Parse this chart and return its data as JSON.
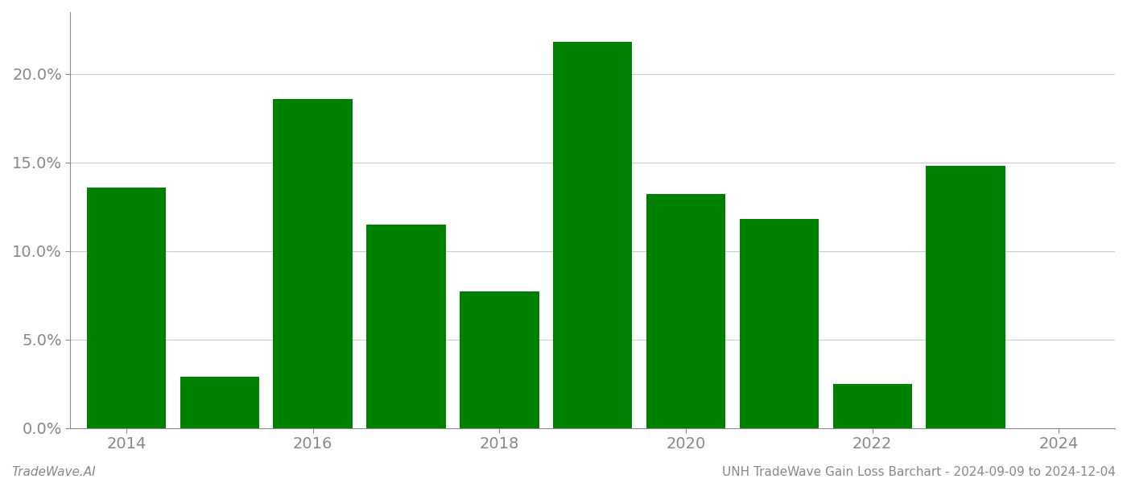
{
  "years": [
    2014,
    2015,
    2016,
    2017,
    2018,
    2019,
    2020,
    2021,
    2022,
    2023,
    2024
  ],
  "values": [
    0.136,
    0.029,
    0.186,
    0.115,
    0.077,
    0.218,
    0.132,
    0.118,
    0.025,
    0.148,
    null
  ],
  "bar_color": "#008000",
  "background_color": "#ffffff",
  "grid_color": "#cccccc",
  "axis_color": "#888888",
  "ylim": [
    0,
    0.235
  ],
  "yticks": [
    0.0,
    0.05,
    0.1,
    0.15,
    0.2
  ],
  "xtick_labels": [
    "2014",
    "2016",
    "2018",
    "2020",
    "2022",
    "2024"
  ],
  "xticks": [
    2014,
    2016,
    2018,
    2020,
    2022,
    2024
  ],
  "footer_left": "TradeWave.AI",
  "footer_right": "UNH TradeWave Gain Loss Barchart - 2024-09-09 to 2024-12-04",
  "footer_color": "#888888",
  "footer_fontsize": 11,
  "bar_width": 0.85,
  "xlim_left": 2013.4,
  "xlim_right": 2024.6
}
